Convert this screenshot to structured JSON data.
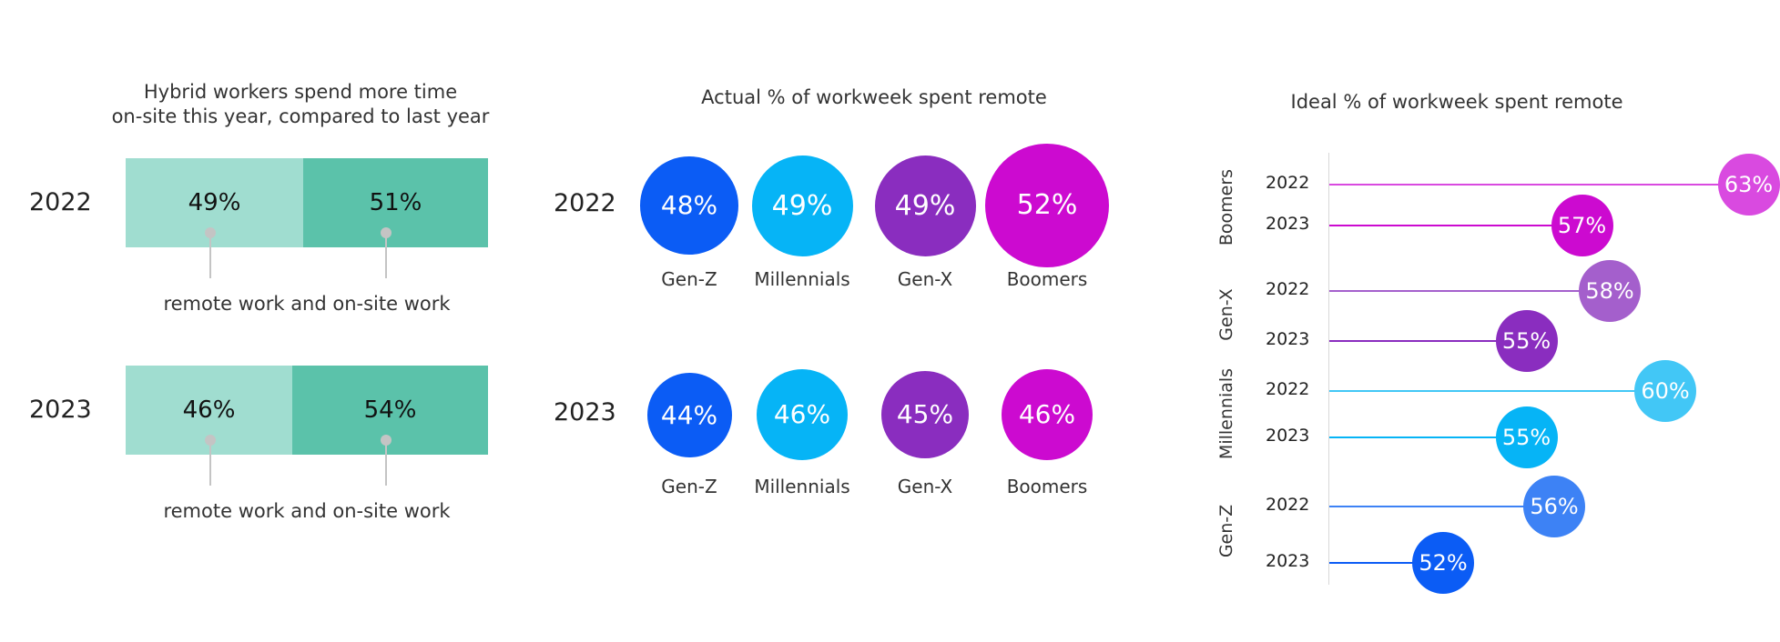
{
  "panel1": {
    "title_line1": "Hybrid workers spend more time",
    "title_line2": "on-site this year, compared to last year",
    "rows": [
      {
        "year": "2022",
        "remote": "49%",
        "onsite": "51%",
        "caption": "remote work and on-site work"
      },
      {
        "year": "2023",
        "remote": "46%",
        "onsite": "54%",
        "caption": "remote work and on-site work"
      }
    ],
    "colors": {
      "remote": "#a0ddd0",
      "onsite": "#5bc2aa"
    }
  },
  "panel2": {
    "title": "Actual % of workweek spent remote",
    "rows": [
      {
        "year": "2022",
        "items": [
          {
            "label": "Gen-Z",
            "value": "48%"
          },
          {
            "label": "Millennials",
            "value": "49%"
          },
          {
            "label": "Gen-X",
            "value": "49%"
          },
          {
            "label": "Boomers",
            "value": "52%"
          }
        ]
      },
      {
        "year": "2023",
        "items": [
          {
            "label": "Gen-Z",
            "value": "44%"
          },
          {
            "label": "Millennials",
            "value": "46%"
          },
          {
            "label": "Gen-X",
            "value": "45%"
          },
          {
            "label": "Boomers",
            "value": "46%"
          }
        ]
      }
    ]
  },
  "panel3": {
    "title": "Ideal % of workweek spent remote",
    "groups": [
      {
        "name": "Boomers",
        "rows": [
          {
            "year": "2022",
            "value": "63%"
          },
          {
            "year": "2023",
            "value": "57%"
          }
        ]
      },
      {
        "name": "Gen-X",
        "rows": [
          {
            "year": "2022",
            "value": "58%"
          },
          {
            "year": "2023",
            "value": "55%"
          }
        ]
      },
      {
        "name": "Millennials",
        "rows": [
          {
            "year": "2022",
            "value": "60%"
          },
          {
            "year": "2023",
            "value": "55%"
          }
        ]
      },
      {
        "name": "Gen-Z",
        "rows": [
          {
            "year": "2022",
            "value": "56%"
          },
          {
            "year": "2023",
            "value": "52%"
          }
        ]
      }
    ]
  },
  "colors": {
    "genz": "#0b5cf5",
    "millennials": "#06b4f6",
    "genx": "#8a2dbf",
    "boomers": "#cc0ad0",
    "genz_light": "#3d82f5",
    "millennials_light": "#42c7f6",
    "genx_light": "#a45fcc",
    "boomers_light": "#d94ae0"
  },
  "chart_data": [
    {
      "type": "bar",
      "title": "Hybrid workers spend more time on-site this year, compared to last year",
      "categories": [
        "2022",
        "2023"
      ],
      "series": [
        {
          "name": "remote work",
          "values": [
            49,
            46
          ]
        },
        {
          "name": "on-site work",
          "values": [
            51,
            54
          ]
        }
      ]
    },
    {
      "type": "scatter",
      "title": "Actual % of workweek spent remote",
      "categories": [
        "Gen-Z",
        "Millennials",
        "Gen-X",
        "Boomers"
      ],
      "series": [
        {
          "name": "2022",
          "values": [
            48,
            49,
            49,
            52
          ]
        },
        {
          "name": "2023",
          "values": [
            44,
            46,
            45,
            46
          ]
        }
      ]
    },
    {
      "type": "bar",
      "title": "Ideal % of workweek spent remote",
      "categories": [
        "Boomers",
        "Gen-X",
        "Millennials",
        "Gen-Z"
      ],
      "series": [
        {
          "name": "2022",
          "values": [
            63,
            58,
            60,
            56
          ]
        },
        {
          "name": "2023",
          "values": [
            57,
            55,
            55,
            52
          ]
        }
      ]
    }
  ]
}
